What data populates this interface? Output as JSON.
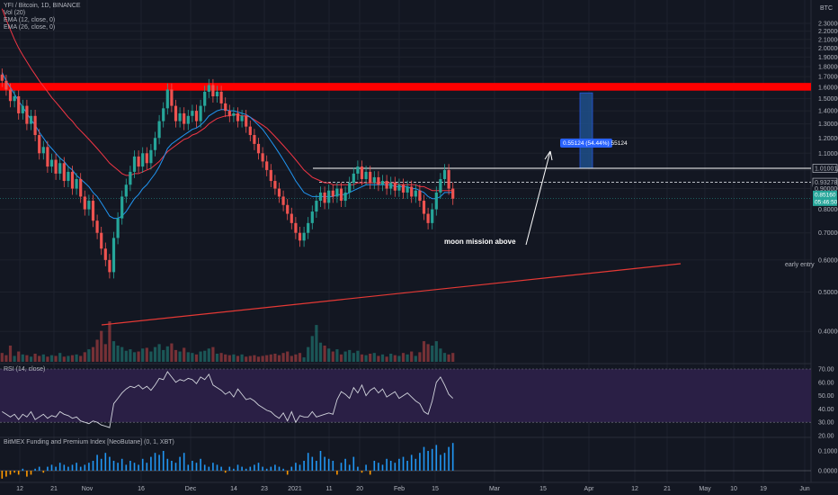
{
  "legend": {
    "symbol": "YFI / Bitcoin, 1D, BINANCE",
    "vol": "Vol (20)",
    "ema12": "EMA (12, close, 0)",
    "ema26": "EMA (26, close, 0)"
  },
  "currency": "BTC",
  "rsi_label": "RSI (14, close)",
  "funding_label": "BitMEX Funding and Premium Index [NeoButane] (0, 1, XBT)",
  "colors": {
    "up": "#26a69a",
    "down": "#ef5350",
    "bg": "#131722",
    "ema12": "#2196f3",
    "ema26": "#f23645",
    "rsi_band": "#2a1f45",
    "target_zone": "#ff0000",
    "trend": "#e53935"
  },
  "chart_data": [
    {
      "type": "candlestick",
      "title": "YFI / Bitcoin, 1D, BINANCE",
      "y_scale": "log",
      "ylim": [
        0.34,
        2.6
      ],
      "price_ticks": [
        "2.30000",
        "2.20000",
        "2.10000",
        "2.00000",
        "1.90000",
        "1.80000",
        "1.70000",
        "1.60000",
        "1.50000",
        "1.40000",
        "1.30000",
        "1.20000",
        "1.10000",
        "1.00000",
        "0.90000",
        "0.80000",
        "0.70000",
        "0.60000",
        "0.50000",
        "0.40000"
      ],
      "x_ticks": [
        "12",
        "21",
        "Nov",
        "16",
        "Dec",
        "14",
        "23",
        "2021",
        "11",
        "20",
        "Feb",
        "15",
        "Mar",
        "15",
        "Apr",
        "12",
        "21",
        "May",
        "10",
        "19",
        "Jun"
      ],
      "price_tags": [
        {
          "text": "1.01001",
          "style": "outline"
        },
        {
          "text": "0.93278",
          "style": "outline"
        },
        {
          "text": "0.90000",
          "style": "plain"
        },
        {
          "text": "0.85160",
          "style": "filled"
        },
        {
          "text": "05:46:50",
          "style": "filled"
        }
      ],
      "annotations": {
        "moon": "moon mission above",
        "early": "early entry",
        "measure": "0.55124 (54.44%) 55124"
      },
      "levels": {
        "moon_line": 1.01001,
        "entry_line": 0.93278,
        "current": 0.8516,
        "target_zone": [
          1.57,
          1.64
        ]
      },
      "candles": [
        [
          1.72,
          1.66
        ],
        [
          1.66,
          1.58
        ],
        [
          1.58,
          1.48
        ],
        [
          1.48,
          1.52
        ],
        [
          1.52,
          1.38
        ],
        [
          1.38,
          1.44
        ],
        [
          1.44,
          1.3
        ],
        [
          1.3,
          1.36
        ],
        [
          1.36,
          1.22
        ],
        [
          1.22,
          1.1
        ],
        [
          1.1,
          1.14
        ],
        [
          1.14,
          1.02
        ],
        [
          1.02,
          1.06
        ],
        [
          1.06,
          0.98
        ],
        [
          0.98,
          1.04
        ],
        [
          1.04,
          0.94
        ],
        [
          0.94,
          0.99
        ],
        [
          0.99,
          0.9
        ],
        [
          0.9,
          0.95
        ],
        [
          0.95,
          0.86
        ],
        [
          0.86,
          0.8
        ],
        [
          0.8,
          0.84
        ],
        [
          0.84,
          0.75
        ],
        [
          0.75,
          0.7
        ],
        [
          0.7,
          0.64
        ],
        [
          0.64,
          0.6
        ],
        [
          0.6,
          0.56
        ],
        [
          0.56,
          0.68
        ],
        [
          0.68,
          0.76
        ],
        [
          0.76,
          0.86
        ],
        [
          0.86,
          0.92
        ],
        [
          0.92,
          0.99
        ],
        [
          0.99,
          1.08
        ],
        [
          1.08,
          1.02
        ],
        [
          1.02,
          1.1
        ],
        [
          1.1,
          1.04
        ],
        [
          1.04,
          1.12
        ],
        [
          1.12,
          1.2
        ],
        [
          1.2,
          1.32
        ],
        [
          1.32,
          1.42
        ],
        [
          1.42,
          1.58
        ],
        [
          1.58,
          1.44
        ],
        [
          1.44,
          1.32
        ],
        [
          1.32,
          1.38
        ],
        [
          1.38,
          1.3
        ],
        [
          1.3,
          1.36
        ],
        [
          1.36,
          1.4
        ],
        [
          1.4,
          1.32
        ],
        [
          1.32,
          1.44
        ],
        [
          1.44,
          1.56
        ],
        [
          1.56,
          1.62
        ],
        [
          1.62,
          1.52
        ],
        [
          1.52,
          1.56
        ],
        [
          1.56,
          1.46
        ],
        [
          1.46,
          1.4
        ],
        [
          1.4,
          1.36
        ],
        [
          1.36,
          1.38
        ],
        [
          1.38,
          1.32
        ],
        [
          1.32,
          1.36
        ],
        [
          1.36,
          1.28
        ],
        [
          1.28,
          1.22
        ],
        [
          1.22,
          1.16
        ],
        [
          1.16,
          1.1
        ],
        [
          1.1,
          1.05
        ],
        [
          1.05,
          1.0
        ],
        [
          1.0,
          0.94
        ],
        [
          0.94,
          0.9
        ],
        [
          0.9,
          0.86
        ],
        [
          0.86,
          0.82
        ],
        [
          0.82,
          0.78
        ],
        [
          0.78,
          0.74
        ],
        [
          0.74,
          0.7
        ],
        [
          0.7,
          0.67
        ],
        [
          0.67,
          0.7
        ],
        [
          0.7,
          0.74
        ],
        [
          0.74,
          0.79
        ],
        [
          0.79,
          0.84
        ],
        [
          0.84,
          0.88
        ],
        [
          0.88,
          0.83
        ],
        [
          0.83,
          0.89
        ],
        [
          0.89,
          0.86
        ],
        [
          0.86,
          0.9
        ],
        [
          0.9,
          0.84
        ],
        [
          0.84,
          0.88
        ],
        [
          0.88,
          0.93
        ],
        [
          0.93,
          0.98
        ],
        [
          0.98,
          1.02
        ],
        [
          1.02,
          0.95
        ],
        [
          0.95,
          0.99
        ],
        [
          0.99,
          0.93
        ],
        [
          0.93,
          0.96
        ],
        [
          0.96,
          0.92
        ],
        [
          0.92,
          0.94
        ],
        [
          0.94,
          0.9
        ],
        [
          0.9,
          0.93
        ],
        [
          0.93,
          0.89
        ],
        [
          0.89,
          0.92
        ],
        [
          0.92,
          0.88
        ],
        [
          0.88,
          0.91
        ],
        [
          0.91,
          0.86
        ],
        [
          0.86,
          0.89
        ],
        [
          0.89,
          0.84
        ],
        [
          0.84,
          0.78
        ],
        [
          0.78,
          0.74
        ],
        [
          0.74,
          0.8
        ],
        [
          0.8,
          0.88
        ],
        [
          0.88,
          0.95
        ],
        [
          0.95,
          1.0
        ],
        [
          1.0,
          0.9
        ],
        [
          0.9,
          0.85
        ]
      ],
      "ema12": [
        1.74,
        1.66,
        1.6,
        1.54,
        1.48,
        1.43,
        1.38,
        1.33,
        1.29,
        1.24,
        1.2,
        1.16,
        1.13,
        1.1,
        1.07,
        1.05,
        1.02,
        1.0,
        0.97,
        0.95,
        0.93,
        0.91,
        0.88,
        0.86,
        0.83,
        0.8,
        0.77,
        0.76,
        0.76,
        0.77,
        0.79,
        0.82,
        0.85,
        0.87,
        0.9,
        0.92,
        0.95,
        0.98,
        1.02,
        1.07,
        1.13,
        1.16,
        1.18,
        1.2,
        1.22,
        1.24,
        1.26,
        1.27,
        1.29,
        1.32,
        1.36,
        1.38,
        1.4,
        1.41,
        1.41,
        1.4,
        1.4,
        1.39,
        1.38,
        1.37,
        1.35,
        1.32,
        1.29,
        1.26,
        1.22,
        1.18,
        1.14,
        1.1,
        1.06,
        1.02,
        0.98,
        0.94,
        0.91,
        0.88,
        0.87,
        0.86,
        0.86,
        0.86,
        0.86,
        0.86,
        0.86,
        0.87,
        0.87,
        0.87,
        0.88,
        0.89,
        0.9,
        0.91,
        0.92,
        0.92,
        0.92,
        0.92,
        0.92,
        0.92,
        0.92,
        0.91,
        0.91,
        0.91,
        0.91,
        0.9,
        0.9,
        0.89,
        0.88,
        0.86,
        0.85,
        0.85,
        0.86,
        0.88,
        0.88,
        0.88
      ],
      "ema26": [
        2.5,
        2.35,
        2.22,
        2.1,
        2.0,
        1.92,
        1.85,
        1.78,
        1.72,
        1.66,
        1.61,
        1.56,
        1.51,
        1.47,
        1.43,
        1.39,
        1.35,
        1.32,
        1.28,
        1.25,
        1.22,
        1.19,
        1.16,
        1.13,
        1.1,
        1.07,
        1.04,
        1.02,
        1.0,
        0.98,
        0.97,
        0.97,
        0.98,
        0.98,
        0.99,
        1.0,
        1.01,
        1.03,
        1.05,
        1.08,
        1.11,
        1.13,
        1.15,
        1.17,
        1.19,
        1.2,
        1.22,
        1.23,
        1.25,
        1.27,
        1.3,
        1.32,
        1.34,
        1.35,
        1.36,
        1.36,
        1.37,
        1.37,
        1.36,
        1.36,
        1.35,
        1.33,
        1.31,
        1.29,
        1.27,
        1.24,
        1.21,
        1.18,
        1.15,
        1.12,
        1.09,
        1.06,
        1.03,
        1.0,
        0.98,
        0.96,
        0.95,
        0.94,
        0.93,
        0.93,
        0.92,
        0.92,
        0.92,
        0.92,
        0.92,
        0.92,
        0.93,
        0.93,
        0.93,
        0.93,
        0.93,
        0.93,
        0.93,
        0.93,
        0.93,
        0.93,
        0.92,
        0.92,
        0.92,
        0.92,
        0.92,
        0.91,
        0.91,
        0.9,
        0.89,
        0.89,
        0.89,
        0.89,
        0.89,
        0.89
      ],
      "volume": [
        12,
        9,
        22,
        8,
        14,
        10,
        9,
        7,
        11,
        8,
        10,
        7,
        9,
        8,
        12,
        7,
        8,
        9,
        10,
        8,
        13,
        17,
        20,
        30,
        42,
        24,
        55,
        28,
        22,
        20,
        15,
        17,
        13,
        14,
        18,
        19,
        14,
        20,
        24,
        16,
        21,
        25,
        16,
        14,
        19,
        13,
        12,
        10,
        14,
        15,
        18,
        20,
        11,
        12,
        10,
        9,
        10,
        8,
        10,
        7,
        8,
        9,
        7,
        8,
        9,
        10,
        11,
        9,
        12,
        14,
        8,
        10,
        12,
        6,
        20,
        35,
        50,
        26,
        22,
        18,
        14,
        17,
        10,
        14,
        16,
        12,
        15,
        10,
        9,
        11,
        12,
        8,
        10,
        7,
        11,
        9,
        8,
        12,
        10,
        14,
        8,
        13,
        28,
        24,
        22,
        28,
        18,
        12,
        10,
        12
      ]
    },
    {
      "type": "line",
      "title": "RSI (14, close)",
      "ylim": [
        20,
        70
      ],
      "ticks": [
        "70.00",
        "60.00",
        "50.00",
        "40.00",
        "30.00",
        "20.00"
      ],
      "band": [
        30,
        70
      ],
      "values": [
        38,
        36,
        34,
        36,
        32,
        36,
        34,
        38,
        32,
        34,
        36,
        33,
        35,
        34,
        38,
        36,
        35,
        33,
        34,
        31,
        30,
        29,
        31,
        30,
        28,
        27,
        26,
        44,
        48,
        52,
        55,
        57,
        56,
        58,
        55,
        57,
        54,
        58,
        63,
        62,
        68,
        64,
        60,
        62,
        61,
        63,
        62,
        59,
        64,
        62,
        66,
        58,
        56,
        54,
        51,
        53,
        49,
        55,
        51,
        47,
        48,
        46,
        43,
        41,
        39,
        38,
        35,
        33,
        37,
        31,
        38,
        30,
        35,
        34,
        34,
        38,
        34,
        35,
        36,
        37,
        36,
        47,
        53,
        51,
        48,
        56,
        52,
        58,
        50,
        54,
        56,
        52,
        55,
        49,
        51,
        53,
        48,
        50,
        52,
        49,
        46,
        44,
        38,
        36,
        46,
        60,
        64,
        58,
        51,
        48
      ]
    },
    {
      "type": "bar",
      "title": "BitMEX Funding and Premium Index [NeoButane] (0, 1, XBT)",
      "ylim": [
        -0.05,
        0.15
      ],
      "ticks": [
        "0.1000",
        "0.0000"
      ],
      "values": [
        -0.04,
        -0.03,
        -0.02,
        -0.01,
        -0.02,
        0.01,
        -0.03,
        -0.02,
        0.01,
        0.02,
        -0.01,
        0.02,
        0.03,
        0.02,
        0.04,
        0.03,
        0.02,
        0.03,
        0.04,
        0.02,
        0.03,
        0.04,
        0.05,
        0.08,
        0.06,
        0.09,
        0.07,
        0.05,
        0.04,
        0.06,
        0.03,
        0.05,
        0.04,
        0.03,
        0.06,
        0.04,
        0.07,
        0.09,
        0.08,
        0.1,
        0.06,
        0.05,
        0.04,
        0.07,
        0.09,
        0.03,
        0.05,
        0.04,
        0.06,
        0.03,
        0.02,
        0.04,
        0.03,
        0.02,
        -0.01,
        0.02,
        0.01,
        0.03,
        0.02,
        0.01,
        0.02,
        0.03,
        0.04,
        0.02,
        0.01,
        0.02,
        0.03,
        0.02,
        0.01,
        -0.02,
        0.02,
        0.04,
        0.03,
        0.05,
        0.09,
        0.07,
        0.05,
        0.1,
        0.07,
        0.06,
        0.05,
        -0.02,
        0.04,
        0.06,
        0.03,
        0.07,
        0.02,
        -0.01,
        0.03,
        -0.02,
        0.05,
        0.04,
        0.03,
        0.06,
        0.05,
        0.04,
        0.06,
        0.07,
        0.05,
        0.08,
        0.06,
        0.09,
        0.12,
        0.1,
        0.11,
        0.13,
        0.08,
        0.09,
        0.12,
        0.14
      ]
    }
  ]
}
